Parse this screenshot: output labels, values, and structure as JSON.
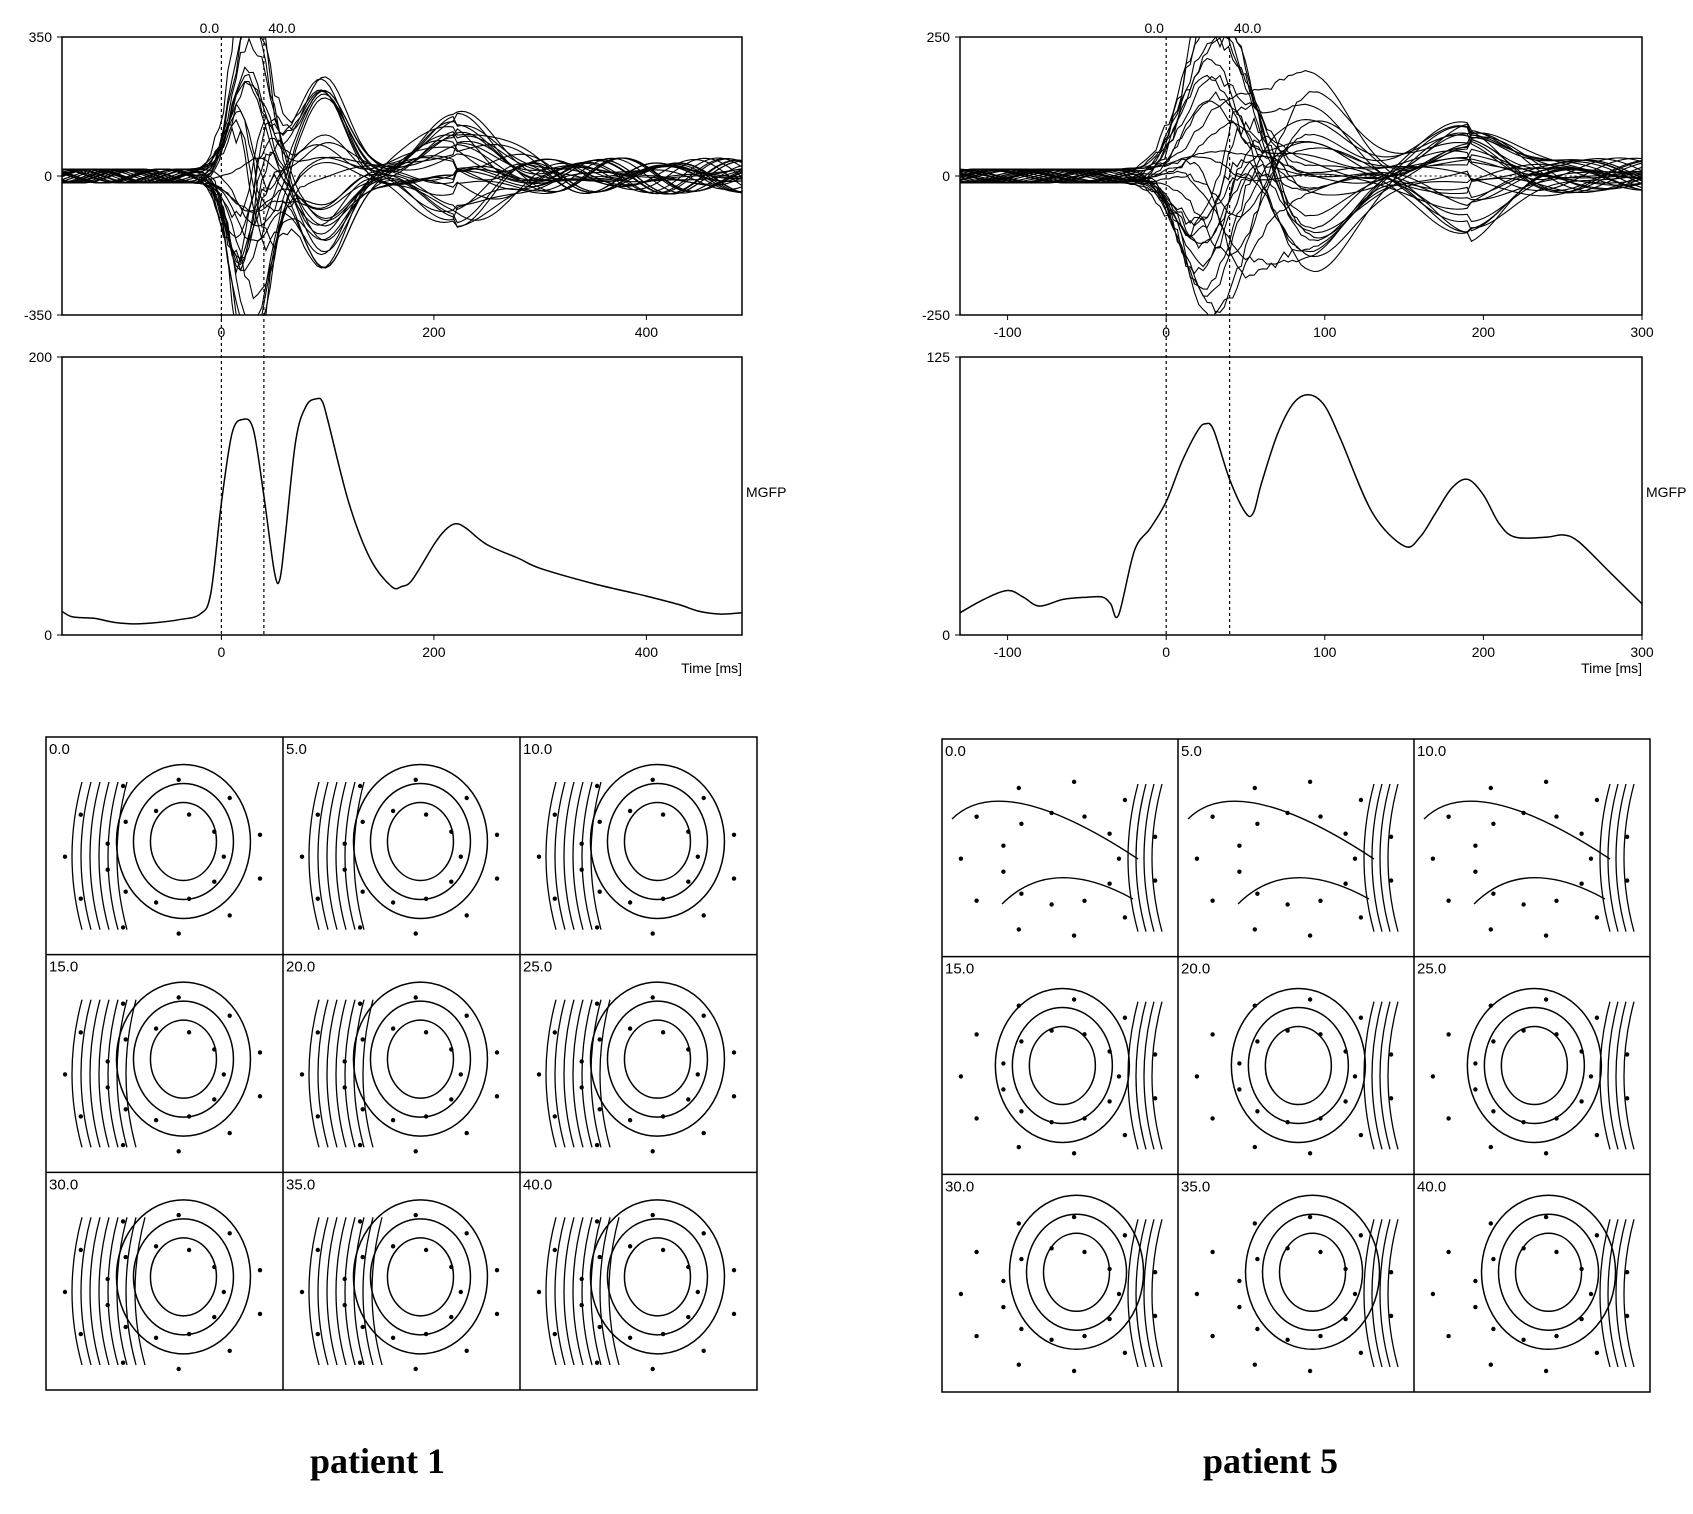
{
  "patients": [
    {
      "label": "patient 1",
      "markers": [
        "0.0",
        "40.0"
      ],
      "marker_values": [
        0,
        40
      ],
      "mgfp_label": "MGFP",
      "time_label": "Time [ms]",
      "map_labels": [
        "0.0",
        "5.0",
        "10.0",
        "15.0",
        "20.0",
        "25.0",
        "30.0",
        "35.0",
        "40.0"
      ]
    },
    {
      "label": "patient 5",
      "markers": [
        "0.0",
        "40.0"
      ],
      "marker_values": [
        0,
        40
      ],
      "mgfp_label": "MGFP",
      "time_label": "Time [ms]",
      "map_labels": [
        "0.0",
        "5.0",
        "10.0",
        "15.0",
        "20.0",
        "25.0",
        "30.0",
        "35.0",
        "40.0"
      ]
    }
  ],
  "chart_data": [
    {
      "type": "line",
      "panel": "patient 1 butterfly",
      "xlim": [
        -150,
        490
      ],
      "ylim": [
        -350,
        350
      ],
      "x_ticks": [
        "0",
        "200",
        "400"
      ],
      "y_ticks": [
        "350",
        "0",
        "-350"
      ],
      "series_count": 30,
      "notes_peaks_at_ms": [
        20,
        35,
        95,
        220
      ]
    },
    {
      "type": "line",
      "panel": "patient 1 MGFP",
      "xlim": [
        -150,
        490
      ],
      "ylim": [
        0,
        200
      ],
      "x_ticks": [
        "0",
        "200",
        "400"
      ],
      "y_ticks": [
        "200",
        "0"
      ],
      "x": [
        -150,
        -140,
        -120,
        -100,
        -80,
        -60,
        -40,
        -20,
        -10,
        0,
        10,
        20,
        30,
        40,
        50,
        55,
        60,
        70,
        80,
        90,
        95,
        100,
        120,
        140,
        160,
        170,
        180,
        200,
        210,
        220,
        230,
        250,
        280,
        300,
        350,
        400,
        430,
        450,
        470,
        490
      ],
      "y": [
        17,
        13,
        12,
        9,
        8,
        9,
        11,
        15,
        30,
        95,
        145,
        155,
        148,
        100,
        45,
        40,
        70,
        140,
        165,
        170,
        168,
        155,
        95,
        55,
        35,
        35,
        40,
        65,
        75,
        80,
        77,
        65,
        55,
        48,
        37,
        28,
        22,
        17,
        15,
        16
      ]
    },
    {
      "type": "line",
      "panel": "patient 5 butterfly",
      "xlim": [
        -130,
        300
      ],
      "ylim": [
        -250,
        250
      ],
      "x_ticks": [
        "-100",
        "0",
        "100",
        "200",
        "300"
      ],
      "y_ticks": [
        "250",
        "0",
        "-250"
      ],
      "series_count": 30,
      "notes_peaks_at_ms": [
        25,
        45,
        90,
        190
      ]
    },
    {
      "type": "line",
      "panel": "patient 5 MGFP",
      "xlim": [
        -130,
        300
      ],
      "ylim": [
        0,
        125
      ],
      "x_ticks": [
        "-100",
        "0",
        "100",
        "200",
        "300"
      ],
      "y_ticks": [
        "125",
        "0"
      ],
      "x": [
        -130,
        -115,
        -100,
        -90,
        -80,
        -65,
        -50,
        -40,
        -35,
        -30,
        -20,
        -10,
        0,
        10,
        20,
        25,
        30,
        40,
        50,
        55,
        60,
        70,
        80,
        90,
        100,
        110,
        130,
        150,
        160,
        170,
        180,
        190,
        200,
        210,
        220,
        240,
        250,
        260,
        280,
        300
      ],
      "y": [
        10,
        16,
        20,
        17,
        13,
        16,
        17,
        17,
        14,
        9,
        38,
        48,
        60,
        78,
        92,
        95,
        92,
        70,
        55,
        55,
        68,
        90,
        104,
        108,
        103,
        88,
        55,
        40,
        44,
        55,
        66,
        70,
        63,
        50,
        44,
        44,
        45,
        42,
        28,
        14
      ]
    }
  ]
}
